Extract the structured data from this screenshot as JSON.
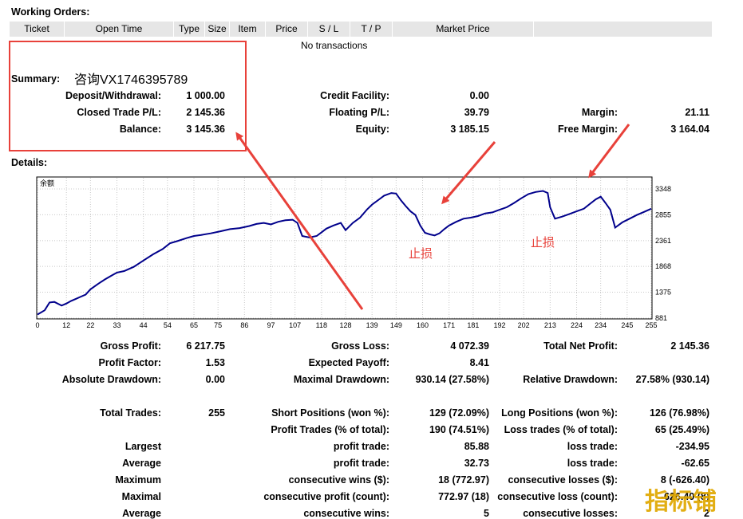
{
  "working_orders": {
    "title": "Working Orders:",
    "columns": [
      "Ticket",
      "Open Time",
      "Type",
      "Size",
      "Item",
      "Price",
      "S / L",
      "T / P",
      "Market Price"
    ],
    "empty_message": "No transactions"
  },
  "summary": {
    "title": "Summary:",
    "annotation": "咨询VX1746395789",
    "rows": [
      {
        "label": "Deposit/Withdrawal:",
        "value": "1 000.00"
      },
      {
        "label": "Closed Trade P/L:",
        "value": "2 145.36"
      },
      {
        "label": "Balance:",
        "value": "3 145.36"
      }
    ],
    "middle_rows": [
      {
        "label": "Credit Facility:",
        "value": "0.00"
      },
      {
        "label": "Floating P/L:",
        "value": "39.79"
      },
      {
        "label": "Equity:",
        "value": "3 185.15"
      }
    ],
    "right_rows": [
      {
        "label": "Margin:",
        "value": "21.11"
      },
      {
        "label": "Free Margin:",
        "value": "3 164.04"
      }
    ]
  },
  "details": {
    "title": "Details:",
    "annotations": [
      "止损",
      "止损"
    ]
  },
  "chart_data": {
    "type": "line",
    "title": "余额",
    "x_ticks": [
      "0",
      "12",
      "22",
      "33",
      "44",
      "54",
      "65",
      "75",
      "86",
      "97",
      "107",
      "118",
      "128",
      "139",
      "149",
      "160",
      "171",
      "181",
      "192",
      "202",
      "213",
      "224",
      "234",
      "245",
      "255"
    ],
    "y_ticks": [
      "881",
      "1375",
      "1868",
      "2361",
      "2855",
      "3348"
    ],
    "ylim": [
      881,
      3348
    ],
    "xlim": [
      0,
      255
    ],
    "grid": true,
    "series": [
      {
        "color": "#00008b",
        "x": [
          0,
          3,
          5,
          7,
          10,
          12,
          14,
          16,
          18,
          20,
          22,
          25,
          28,
          31,
          33,
          36,
          40,
          44,
          48,
          52,
          55,
          58,
          62,
          65,
          68,
          72,
          76,
          80,
          84,
          88,
          91,
          94,
          97,
          100,
          103,
          106,
          108,
          110,
          113,
          116,
          118,
          120,
          123,
          126,
          128,
          131,
          134,
          137,
          139,
          142,
          144,
          147,
          149,
          151,
          153,
          155,
          157,
          159,
          161,
          163,
          165,
          167,
          169,
          171,
          174,
          177,
          180,
          183,
          186,
          189,
          192,
          195,
          198,
          201,
          204,
          207,
          210,
          212,
          213,
          215,
          218,
          221,
          224,
          227,
          230,
          232,
          234,
          236,
          238,
          240,
          243,
          246,
          249,
          252,
          255
        ],
        "values": [
          950,
          1030,
          1180,
          1190,
          1120,
          1160,
          1210,
          1250,
          1290,
          1330,
          1430,
          1530,
          1620,
          1700,
          1750,
          1780,
          1860,
          1980,
          2100,
          2200,
          2310,
          2350,
          2410,
          2450,
          2470,
          2500,
          2540,
          2580,
          2600,
          2640,
          2680,
          2700,
          2670,
          2720,
          2750,
          2760,
          2700,
          2450,
          2420,
          2450,
          2520,
          2590,
          2650,
          2700,
          2560,
          2700,
          2800,
          2960,
          3050,
          3150,
          3220,
          3270,
          3260,
          3130,
          3020,
          2920,
          2850,
          2650,
          2510,
          2480,
          2460,
          2500,
          2580,
          2650,
          2720,
          2780,
          2800,
          2830,
          2880,
          2900,
          2950,
          3000,
          3080,
          3170,
          3250,
          3290,
          3310,
          3270,
          3000,
          2780,
          2820,
          2870,
          2920,
          2970,
          3080,
          3150,
          3200,
          3080,
          2950,
          2610,
          2710,
          2780,
          2850,
          2910,
          2970
        ]
      }
    ]
  },
  "stats": {
    "col1": [
      {
        "label": "Gross Profit:",
        "value": "6 217.75"
      },
      {
        "label": "Profit Factor:",
        "value": "1.53"
      },
      {
        "label": "Absolute Drawdown:",
        "value": "0.00"
      }
    ],
    "col2": [
      {
        "label": "Gross Loss:",
        "value": "4 072.39"
      },
      {
        "label": "Expected Payoff:",
        "value": "8.41"
      },
      {
        "label": "Maximal Drawdown:",
        "value": "930.14 (27.58%)"
      }
    ],
    "col3": [
      {
        "label": "Total Net Profit:",
        "value": "2 145.36"
      },
      {
        "label": "Relative Drawdown:",
        "value": "27.58% (930.14)"
      }
    ],
    "total_trades": {
      "label": "Total Trades:",
      "value": "255"
    },
    "mid": [
      {
        "label": "Short Positions (won %):",
        "value": "129 (72.09%)"
      },
      {
        "label": "Profit Trades (% of total):",
        "value": "190 (74.51%)"
      },
      {
        "label": "profit trade:",
        "value": "85.88"
      },
      {
        "label": "profit trade:",
        "value": "32.73"
      },
      {
        "label": "consecutive wins ($):",
        "value": "18 (772.97)"
      },
      {
        "label": "consecutive profit (count):",
        "value": "772.97 (18)"
      },
      {
        "label": "consecutive wins:",
        "value": "5"
      }
    ],
    "right": [
      {
        "label": "Long Positions (won %):",
        "value": "126 (76.98%)"
      },
      {
        "label": "Loss trades (% of total):",
        "value": "65 (25.49%)"
      },
      {
        "label": "loss trade:",
        "value": "-234.95"
      },
      {
        "label": "loss trade:",
        "value": "-62.65"
      },
      {
        "label": "consecutive losses ($):",
        "value": "8 (-626.40)"
      },
      {
        "label": "consecutive loss (count):",
        "value": "-626.40 (8)"
      },
      {
        "label": "consecutive losses:",
        "value": "2"
      }
    ],
    "left_labels": [
      "Largest",
      "Average",
      "Maximum",
      "Maximal",
      "Average"
    ]
  },
  "watermark": "指标铺",
  "colors": {
    "accent_red": "#e8413a",
    "line": "#00008b",
    "header_bg": "#e6e6e6"
  }
}
